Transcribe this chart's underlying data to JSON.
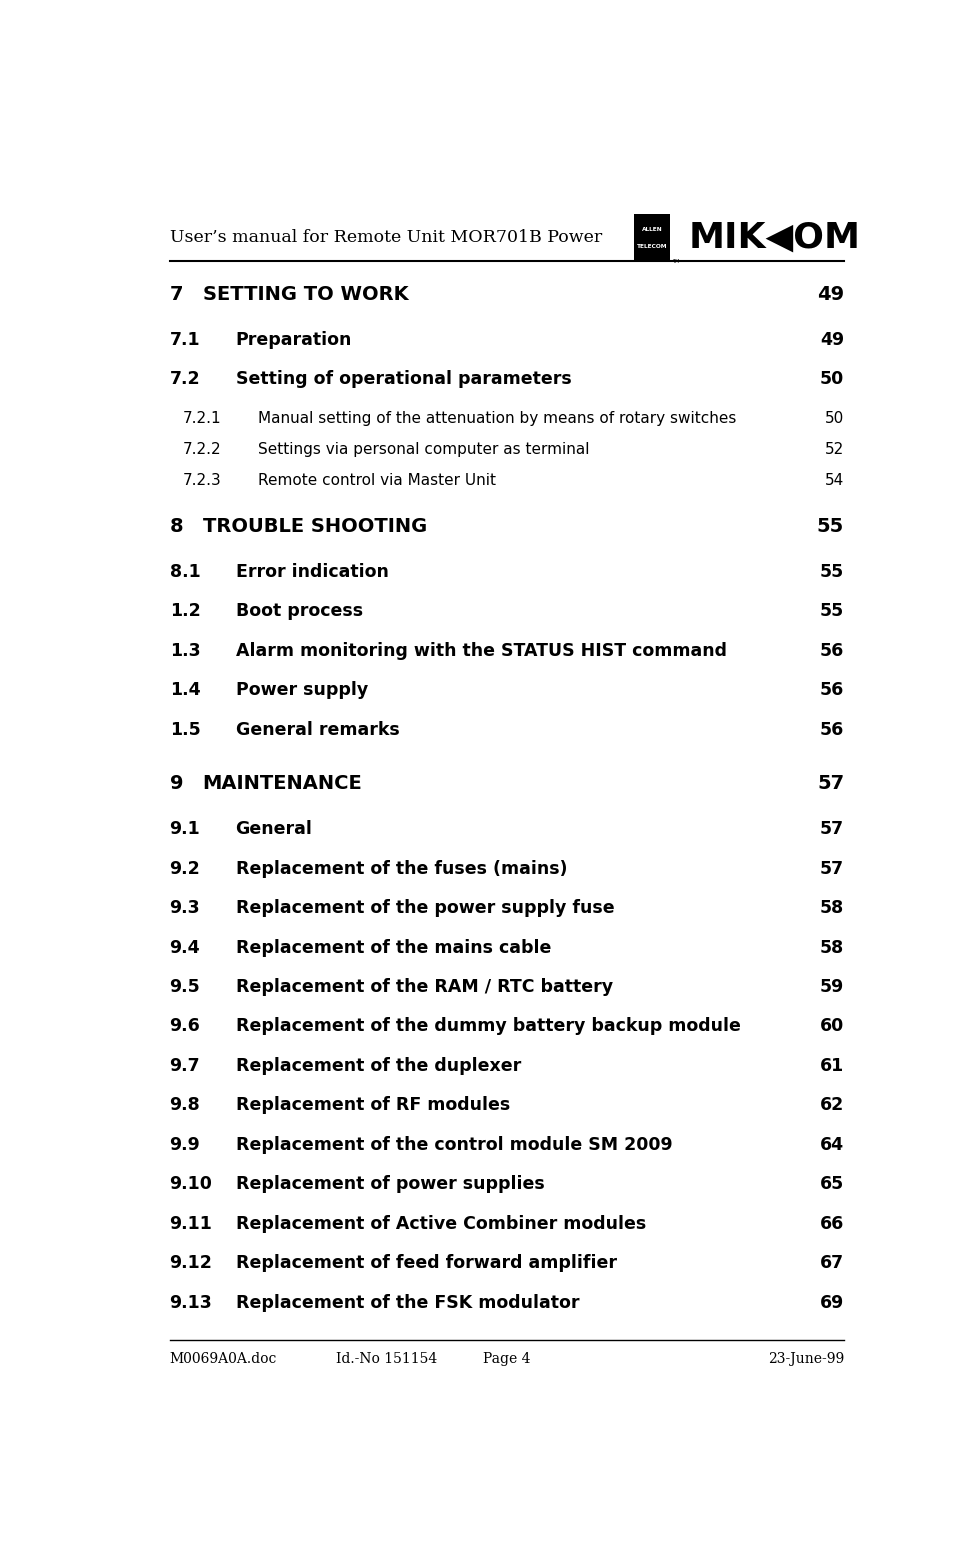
{
  "header_title": "User’s manual for Remote Unit MOR701B Power",
  "footer_left": "M0069A0A.doc",
  "footer_center": "Id.-No 151154",
  "footer_page": "Page 4",
  "footer_right": "23-June-99",
  "bg_color": "#ffffff",
  "text_color": "#000000",
  "entries": [
    {
      "num": "7",
      "title": "SETTING TO WORK",
      "page": "49",
      "level": 0,
      "bold": true
    },
    {
      "num": "7.1",
      "title": "Preparation",
      "page": "49",
      "level": 1,
      "bold": true
    },
    {
      "num": "7.2",
      "title": "Setting of operational parameters",
      "page": "50",
      "level": 1,
      "bold": true
    },
    {
      "num": "7.2.1",
      "title": "Manual setting of the attenuation by means of rotary switches",
      "page": "50",
      "level": 2,
      "bold": false
    },
    {
      "num": "7.2.2",
      "title": "Settings via personal computer as terminal",
      "page": "52",
      "level": 2,
      "bold": false
    },
    {
      "num": "7.2.3",
      "title": "Remote control via Master Unit",
      "page": "54",
      "level": 2,
      "bold": false
    },
    {
      "num": "8",
      "title": "TROUBLE SHOOTING",
      "page": "55",
      "level": 0,
      "bold": true
    },
    {
      "num": "8.1",
      "title": "Error indication",
      "page": "55",
      "level": 1,
      "bold": true
    },
    {
      "num": "1.2",
      "title": "Boot process",
      "page": "55",
      "level": 1,
      "bold": true
    },
    {
      "num": "1.3",
      "title": "Alarm monitoring with the STATUS HIST command",
      "page": "56",
      "level": 1,
      "bold": true
    },
    {
      "num": "1.4",
      "title": "Power supply",
      "page": "56",
      "level": 1,
      "bold": true
    },
    {
      "num": "1.5",
      "title": "General remarks",
      "page": "56",
      "level": 1,
      "bold": true
    },
    {
      "num": "9",
      "title": "MAINTENANCE",
      "page": "57",
      "level": 0,
      "bold": true
    },
    {
      "num": "9.1",
      "title": "General",
      "page": "57",
      "level": 1,
      "bold": true
    },
    {
      "num": "9.2",
      "title": "Replacement of the fuses (mains)",
      "page": "57",
      "level": 1,
      "bold": true
    },
    {
      "num": "9.3",
      "title": "Replacement of the power supply fuse",
      "page": "58",
      "level": 1,
      "bold": true
    },
    {
      "num": "9.4",
      "title": "Replacement of the mains cable",
      "page": "58",
      "level": 1,
      "bold": true
    },
    {
      "num": "9.5",
      "title": "Replacement of the RAM / RTC battery",
      "page": "59",
      "level": 1,
      "bold": true
    },
    {
      "num": "9.6",
      "title": "Replacement of the dummy battery backup module",
      "page": "60",
      "level": 1,
      "bold": true
    },
    {
      "num": "9.7",
      "title": "Replacement of the duplexer",
      "page": "61",
      "level": 1,
      "bold": true
    },
    {
      "num": "9.8",
      "title": "Replacement of RF modules",
      "page": "62",
      "level": 1,
      "bold": true
    },
    {
      "num": "9.9",
      "title": "Replacement of the control module SM 2009",
      "page": "64",
      "level": 1,
      "bold": true
    },
    {
      "num": "9.10",
      "title": "Replacement of power supplies",
      "page": "65",
      "level": 1,
      "bold": true
    },
    {
      "num": "9.11",
      "title": "Replacement of Active Combiner modules",
      "page": "66",
      "level": 1,
      "bold": true
    },
    {
      "num": "9.12",
      "title": "Replacement of feed forward amplifier",
      "page": "67",
      "level": 1,
      "bold": true
    },
    {
      "num": "9.13",
      "title": "Replacement of the FSK modulator",
      "page": "69",
      "level": 1,
      "bold": true
    }
  ]
}
